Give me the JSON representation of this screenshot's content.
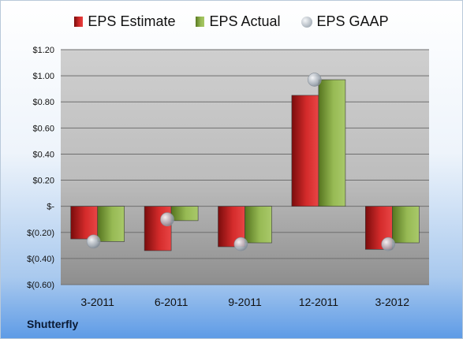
{
  "company": "Shutterfly",
  "chart_data": {
    "type": "bar",
    "categories": [
      "3-2011",
      "6-2011",
      "9-2011",
      "12-2011",
      "3-2012"
    ],
    "series": [
      {
        "name": "EPS Estimate",
        "type": "bar",
        "values": [
          -0.25,
          -0.34,
          -0.31,
          0.85,
          -0.33
        ],
        "color": "#c81e1e"
      },
      {
        "name": "EPS Actual",
        "type": "bar",
        "values": [
          -0.27,
          -0.11,
          -0.28,
          0.97,
          -0.28
        ],
        "color": "#8db04a"
      },
      {
        "name": "EPS GAAP",
        "type": "scatter",
        "values": [
          -0.27,
          -0.1,
          -0.29,
          0.97,
          -0.29
        ],
        "color": "#b8c0c8"
      }
    ],
    "y_ticks": [
      "$(0.60)",
      "$(0.40)",
      "$(0.20)",
      "$-",
      "$0.20",
      "$0.40",
      "$0.60",
      "$0.80",
      "$1.00",
      "$1.20"
    ],
    "ylim": [
      -0.6,
      1.2
    ],
    "grid": true,
    "legend": "top"
  }
}
